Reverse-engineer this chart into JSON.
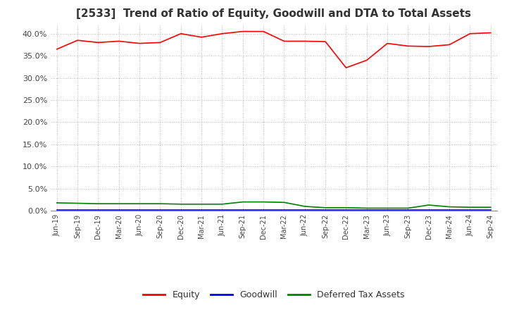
{
  "title": "[2533]  Trend of Ratio of Equity, Goodwill and DTA to Total Assets",
  "x_labels": [
    "Jun-19",
    "Sep-19",
    "Dec-19",
    "Mar-20",
    "Jun-20",
    "Sep-20",
    "Dec-20",
    "Mar-21",
    "Jun-21",
    "Sep-21",
    "Dec-21",
    "Mar-22",
    "Jun-22",
    "Sep-22",
    "Dec-22",
    "Mar-23",
    "Jun-23",
    "Sep-23",
    "Dec-23",
    "Mar-24",
    "Jun-24",
    "Sep-24"
  ],
  "equity": [
    36.5,
    38.5,
    38.0,
    38.3,
    37.8,
    38.0,
    40.0,
    39.2,
    40.0,
    40.5,
    40.5,
    38.3,
    38.3,
    38.2,
    32.3,
    34.0,
    37.8,
    37.2,
    37.1,
    37.5,
    40.0,
    40.2
  ],
  "goodwill": [
    0.2,
    0.2,
    0.2,
    0.2,
    0.2,
    0.2,
    0.2,
    0.2,
    0.2,
    0.2,
    0.2,
    0.2,
    0.2,
    0.2,
    0.2,
    0.2,
    0.2,
    0.2,
    0.2,
    0.2,
    0.2,
    0.2
  ],
  "dta": [
    1.8,
    1.7,
    1.6,
    1.6,
    1.6,
    1.6,
    1.5,
    1.5,
    1.5,
    2.0,
    2.0,
    1.9,
    1.0,
    0.7,
    0.7,
    0.6,
    0.6,
    0.6,
    1.3,
    0.9,
    0.8,
    0.8
  ],
  "equity_color": "#FF0000",
  "goodwill_color": "#0000FF",
  "dta_color": "#008000",
  "ylim": [
    0,
    42
  ],
  "yticks": [
    0,
    5,
    10,
    15,
    20,
    25,
    30,
    35,
    40
  ],
  "background_color": "#FFFFFF",
  "grid_color": "#999999",
  "title_fontsize": 11,
  "title_color": "#333333"
}
